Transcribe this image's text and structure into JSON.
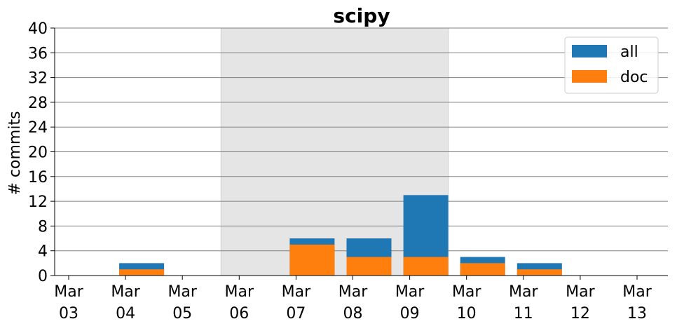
{
  "chart_data": {
    "type": "bar",
    "title": "scipy",
    "xlabel": "",
    "ylabel": "# commits",
    "ylim": [
      0,
      40
    ],
    "yticks": [
      0,
      4,
      8,
      12,
      16,
      20,
      24,
      28,
      32,
      36,
      40
    ],
    "ytick_labels": [
      "0",
      "4",
      "8",
      "12",
      "16",
      "20",
      "24",
      "28",
      "32",
      "36",
      "40"
    ],
    "categories": [
      "Mar\n03",
      "Mar\n04",
      "Mar\n05",
      "Mar\n06",
      "Mar\n07",
      "Mar\n08",
      "Mar\n09",
      "Mar\n10",
      "Mar\n11",
      "Mar\n12",
      "Mar\n13"
    ],
    "series": [
      {
        "name": "all",
        "color": "#1f77b4",
        "values": [
          0,
          2,
          0,
          0,
          6,
          6,
          13,
          3,
          2,
          0,
          0
        ]
      },
      {
        "name": "doc",
        "color": "#ff7f0e",
        "values": [
          0,
          1,
          0,
          0,
          5,
          3,
          3,
          2,
          1,
          0,
          0
        ]
      }
    ],
    "highlight_span": {
      "from_category": "Mar\n06",
      "to_category": "Mar\n10",
      "color": "#e5e5e5"
    },
    "grid": "horizontal",
    "legend_position": "top-right"
  }
}
